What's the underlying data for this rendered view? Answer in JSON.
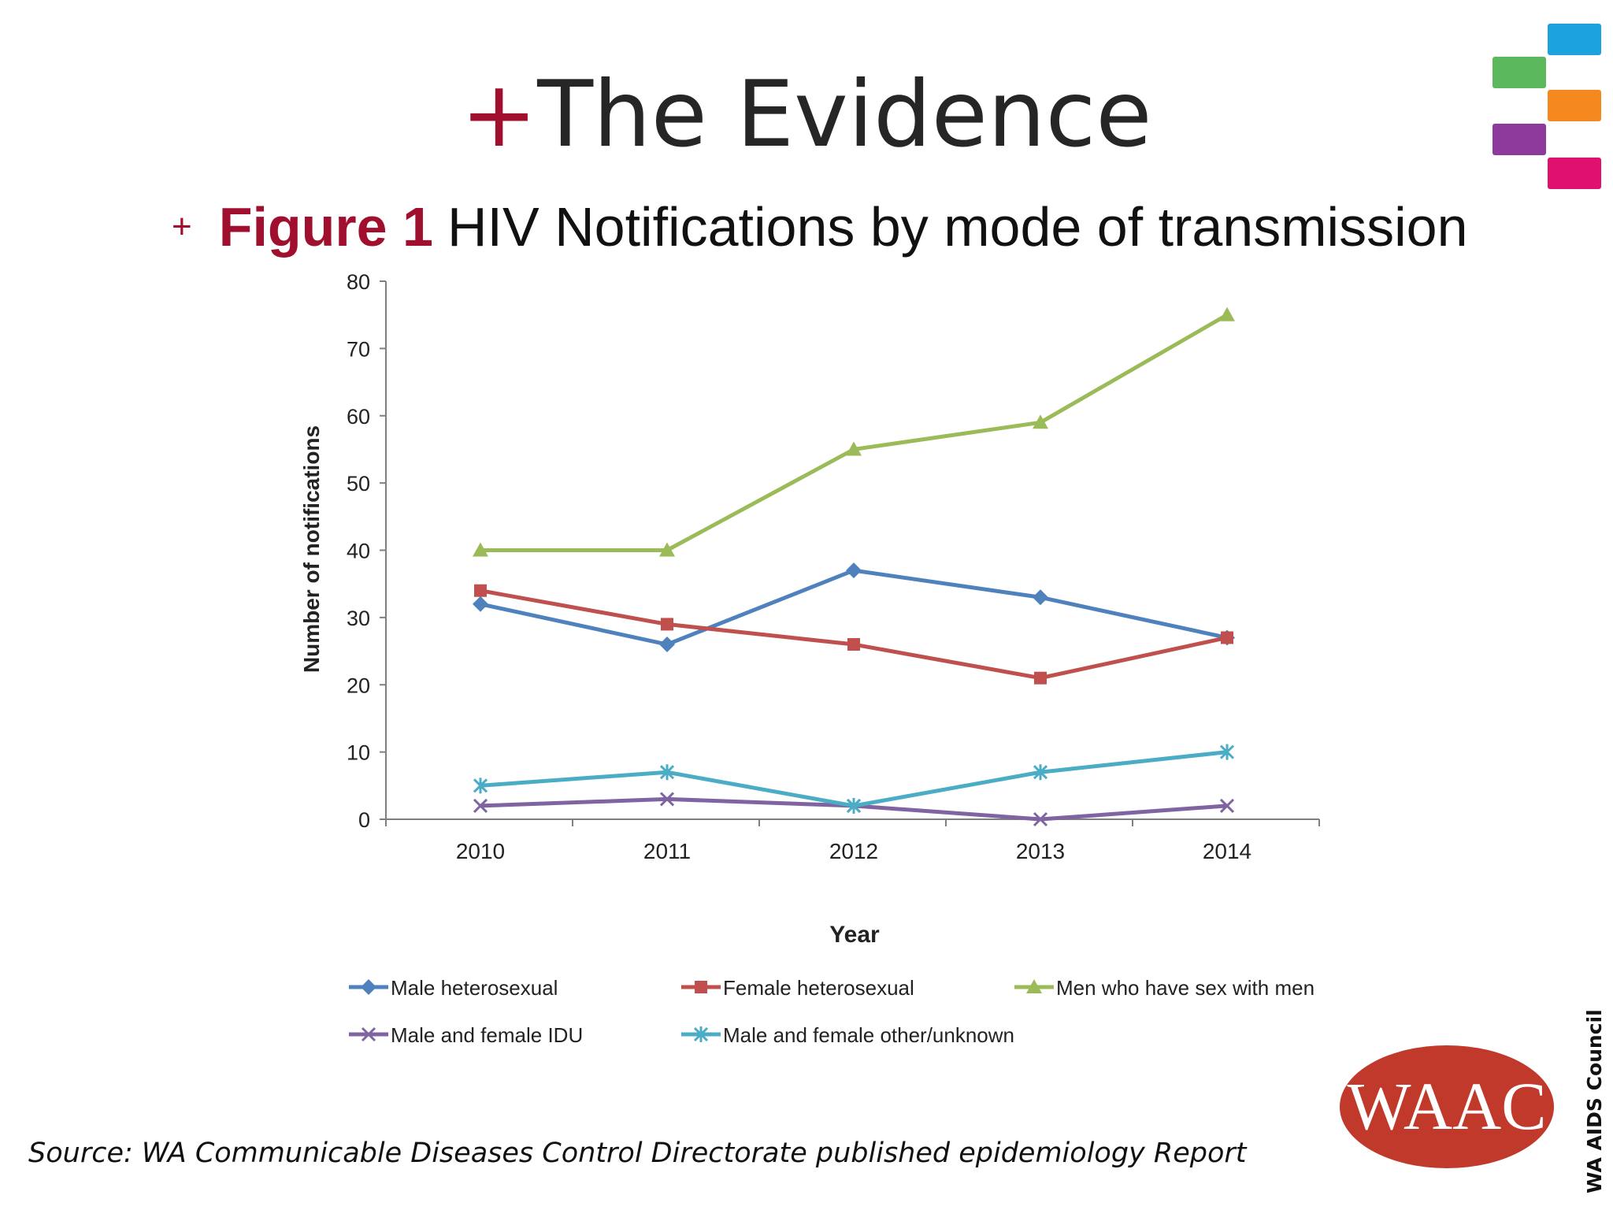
{
  "slide": {
    "title_plus": "+",
    "title": "The Evidence",
    "figure_bullet": "+",
    "figure_label": "Figure 1",
    "figure_title": "HIV Notifications by mode of transmission",
    "source": "Source: WA Communicable Diseases Control Directorate published epidemiology Report",
    "org_vertical": "WA AIDS Council",
    "logo_text": "WAAC",
    "logo_color": "#c0392b",
    "decor_colors": [
      "#1aa3dc",
      "#5cb85c",
      "#f5891f",
      "#8e3a9d",
      "#e0106e"
    ]
  },
  "chart_data": {
    "type": "line",
    "xlabel": "Year",
    "ylabel": "Number of notifications",
    "ylim": [
      0,
      80
    ],
    "yticks": [
      0,
      10,
      20,
      30,
      40,
      50,
      60,
      70,
      80
    ],
    "categories": [
      "2010",
      "2011",
      "2012",
      "2013",
      "2014"
    ],
    "legend_position": "bottom",
    "grid": false,
    "series": [
      {
        "name": "Male heterosexual",
        "values": [
          32,
          26,
          37,
          33,
          27
        ],
        "color": "#4f81bd",
        "marker": "diamond"
      },
      {
        "name": "Female heterosexual",
        "values": [
          34,
          29,
          26,
          21,
          27
        ],
        "color": "#c0504d",
        "marker": "square"
      },
      {
        "name": "Men who have sex with men",
        "values": [
          40,
          40,
          55,
          59,
          75
        ],
        "color": "#9bbb59",
        "marker": "triangle"
      },
      {
        "name": "Male and female IDU",
        "values": [
          2,
          3,
          2,
          0,
          2
        ],
        "color": "#8064a2",
        "marker": "x"
      },
      {
        "name": "Male and female other/unknown",
        "values": [
          5,
          7,
          2,
          7,
          10
        ],
        "color": "#4bacc6",
        "marker": "star"
      }
    ]
  }
}
